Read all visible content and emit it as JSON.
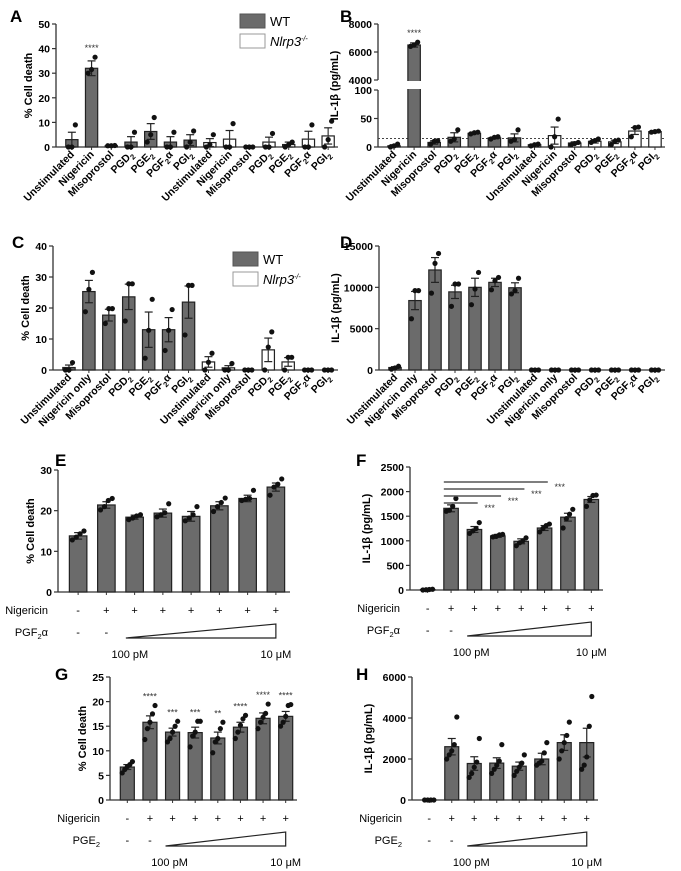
{
  "colors": {
    "wt": "#6b6b6b",
    "ko": "#ffffff",
    "axis": "#333333",
    "dot": "#111111",
    "line": "#555555"
  },
  "legend": {
    "wt": "WT",
    "ko": "Nlrp3",
    "ko_sup": "-/-"
  },
  "chart_data": [
    {
      "panel": "A",
      "type": "bar",
      "ylabel": "% Cell death",
      "ylim": [
        0,
        50
      ],
      "yticks": [
        0,
        10,
        20,
        30,
        40,
        50
      ],
      "categories": [
        "Unstimulated",
        "Nigericin",
        "Misoprostol",
        "PGD2",
        "PGE2",
        "PGF2α",
        "PGI2",
        "Unstimulated",
        "Nigericin",
        "Misoprostol",
        "PGD2",
        "PGE2",
        "PGF2α",
        "PGI2"
      ],
      "groups": [
        "WT",
        "WT",
        "WT",
        "WT",
        "WT",
        "WT",
        "WT",
        "Nlrp3-/-",
        "Nlrp3-/-",
        "Nlrp3-/-",
        "Nlrp3-/-",
        "Nlrp3-/-",
        "Nlrp3-/-",
        "Nlrp3-/-"
      ],
      "values": [
        3,
        32,
        0.5,
        2,
        6.3,
        2,
        2.8,
        1.8,
        3.2,
        0,
        2,
        1,
        3.2,
        4.5
      ],
      "errors": [
        3,
        3,
        0.2,
        2.2,
        3.2,
        2.2,
        2.2,
        1.6,
        3.5,
        0,
        2,
        1,
        3.2,
        3.3
      ],
      "points": [
        [
          0,
          0,
          9
        ],
        [
          30,
          31.5,
          36.5
        ],
        [
          0.5,
          0.5,
          0.6
        ],
        [
          0,
          0,
          6
        ],
        [
          2,
          5,
          12
        ],
        [
          0,
          0,
          6
        ],
        [
          0,
          2,
          6.5
        ],
        [
          0,
          1,
          5
        ],
        [
          0,
          0,
          9.5
        ],
        [
          0,
          0,
          0
        ],
        [
          0,
          0,
          5.5
        ],
        [
          0,
          1,
          2
        ],
        [
          0,
          0,
          9
        ],
        [
          0,
          3,
          10.5
        ]
      ],
      "annotations": [
        {
          "index": 1,
          "text": "****"
        }
      ],
      "legend": true
    },
    {
      "panel": "B",
      "type": "bar",
      "ylabel": "IL-1β (pg/mL)",
      "ylim_lower": [
        0,
        100
      ],
      "ylim_upper": [
        4000,
        8000
      ],
      "yticks_lower": [
        0,
        50,
        100
      ],
      "yticks_upper": [
        4000,
        6000,
        8000
      ],
      "reference_line": 15,
      "categories": [
        "Unstimulated",
        "Nigericin",
        "Misoprostol",
        "PGD2",
        "PGE2",
        "PGF2α",
        "PGI2",
        "Unstimulated",
        "Nigericin",
        "Misoprostol",
        "PGD2",
        "PGE2",
        "PGF2α",
        "PGI2"
      ],
      "groups": [
        "WT",
        "WT",
        "WT",
        "WT",
        "WT",
        "WT",
        "WT",
        "Nlrp3-/-",
        "Nlrp3-/-",
        "Nlrp3-/-",
        "Nlrp3-/-",
        "Nlrp3-/-",
        "Nlrp3-/-",
        "Nlrp3-/-"
      ],
      "values": [
        2,
        6500,
        8,
        17,
        24,
        16,
        16,
        4,
        20,
        7,
        10,
        9,
        28,
        27
      ],
      "errors": [
        2,
        150,
        3,
        8,
        1,
        1.5,
        7,
        1,
        15,
        2,
        3,
        3,
        6,
        1
      ],
      "points": [
        [
          0,
          2,
          5
        ],
        [
          6400,
          6500,
          6700
        ],
        [
          5,
          10,
          11
        ],
        [
          10,
          14,
          30
        ],
        [
          23,
          25,
          26
        ],
        [
          14,
          17,
          18
        ],
        [
          10,
          13,
          30
        ],
        [
          2,
          4,
          5
        ],
        [
          0,
          18,
          49
        ],
        [
          4,
          6,
          8
        ],
        [
          8,
          11,
          14
        ],
        [
          4,
          10,
          12
        ],
        [
          18,
          34,
          35
        ],
        [
          26,
          27,
          28
        ]
      ],
      "annotations": [
        {
          "index": 1,
          "text": "****"
        }
      ]
    },
    {
      "panel": "C",
      "type": "bar",
      "ylabel": "% Cell death",
      "ylim": [
        0,
        40
      ],
      "yticks": [
        0,
        10,
        20,
        30,
        40
      ],
      "categories": [
        "Unstimulated",
        "Nigericin only",
        "Misoprostol",
        "PGD2",
        "PGE2",
        "PGF2α",
        "PGI2",
        "Unstimulated",
        "Nigericin only",
        "Misoprostol",
        "PGD2",
        "PGE2",
        "PGF2α",
        "PGI2"
      ],
      "groups": [
        "WT",
        "WT",
        "WT",
        "WT",
        "WT",
        "WT",
        "WT",
        "Nlrp3-/-",
        "Nlrp3-/-",
        "Nlrp3-/-",
        "Nlrp3-/-",
        "Nlrp3-/-",
        "Nlrp3-/-",
        "Nlrp3-/-"
      ],
      "values": [
        0.8,
        25.3,
        17.7,
        23.6,
        13,
        13,
        21.9,
        2.6,
        0.7,
        0,
        6.5,
        2.6,
        0,
        0
      ],
      "errors": [
        0.8,
        3.6,
        1.9,
        4.1,
        5.7,
        3.9,
        5.2,
        1.7,
        0.7,
        0,
        3.8,
        1.4,
        0,
        0
      ],
      "points": [
        [
          0,
          0,
          2.4
        ],
        [
          18.8,
          26,
          31.5
        ],
        [
          15,
          19.8,
          19.8
        ],
        [
          15.8,
          27.8,
          27.8
        ],
        [
          3.8,
          12.8,
          22.8
        ],
        [
          6.3,
          12.8,
          19.5
        ],
        [
          11.3,
          27.3,
          27.3
        ],
        [
          0,
          2.5,
          5.4
        ],
        [
          0,
          0,
          2.1
        ],
        [
          0,
          0,
          0
        ],
        [
          0,
          7.4,
          12.3
        ],
        [
          0,
          4.1,
          4.1
        ],
        [
          0,
          0,
          0
        ],
        [
          0,
          0,
          0
        ]
      ],
      "legend": true
    },
    {
      "panel": "D",
      "type": "bar",
      "ylabel": "IL-1β (pg/mL)",
      "ylim": [
        0,
        15000
      ],
      "yticks": [
        0,
        5000,
        10000,
        15000
      ],
      "categories": [
        "Unstimulated",
        "Nigericin only",
        "Misoprostol",
        "PGD2",
        "PGE2",
        "PGF2α",
        "PGI2",
        "Unstimulated",
        "Nigericin only",
        "Misoprostol",
        "PGD2",
        "PGE2",
        "PGF2α",
        "PGI2"
      ],
      "groups": [
        "WT",
        "WT",
        "WT",
        "WT",
        "WT",
        "WT",
        "WT",
        "Nlrp3-/-",
        "Nlrp3-/-",
        "Nlrp3-/-",
        "Nlrp3-/-",
        "Nlrp3-/-",
        "Nlrp3-/-",
        "Nlrp3-/-"
      ],
      "values": [
        300,
        8400,
        12100,
        9450,
        10000,
        10600,
        9950,
        0,
        0,
        0,
        0,
        0,
        0,
        0
      ],
      "errors": [
        100,
        1100,
        1500,
        800,
        1100,
        500,
        600,
        0,
        0,
        0,
        0,
        0,
        0,
        0
      ],
      "points": [
        [
          100,
          250,
          450
        ],
        [
          6200,
          9600,
          9600
        ],
        [
          9300,
          12900,
          14100
        ],
        [
          7700,
          10400,
          10400
        ],
        [
          7900,
          9800,
          11800
        ],
        [
          9700,
          10800,
          11200
        ],
        [
          9200,
          9600,
          11100
        ],
        [
          0,
          0,
          0
        ],
        [
          0,
          0,
          0
        ],
        [
          0,
          0,
          0
        ],
        [
          0,
          0,
          0
        ],
        [
          0,
          0,
          0
        ],
        [
          0,
          0,
          0
        ],
        [
          0,
          0,
          0
        ]
      ]
    },
    {
      "panel": "E",
      "type": "bar",
      "ylabel": "% Cell death",
      "ylim": [
        0,
        30
      ],
      "yticks": [
        0,
        10,
        20,
        30
      ],
      "rows": [
        {
          "label": "Nigericin",
          "marks": [
            "-",
            "+",
            "+",
            "+",
            "+",
            "+",
            "+",
            "+"
          ]
        },
        {
          "label": "PGF2α",
          "marks": [
            "-",
            "-"
          ],
          "gradient": {
            "from": "100 pM",
            "to": "10 μM"
          }
        }
      ],
      "values": [
        13.8,
        21.4,
        18.4,
        19.4,
        18.6,
        21.2,
        23,
        25.8
      ],
      "errors": [
        0.8,
        0.8,
        0.5,
        1,
        1.2,
        1,
        0.8,
        1
      ],
      "points": [
        [
          12.8,
          13.5,
          14.3,
          15
        ],
        [
          20.2,
          21,
          22.5,
          23
        ],
        [
          17.8,
          18.2,
          18.7,
          19
        ],
        [
          18.5,
          19,
          19.5,
          21.7
        ],
        [
          17.5,
          18.2,
          19,
          21
        ],
        [
          19.8,
          21,
          22,
          23.1
        ],
        [
          22.5,
          22.8,
          23,
          25
        ],
        [
          23.8,
          25.8,
          26.5,
          27.8
        ]
      ]
    },
    {
      "panel": "F",
      "type": "bar",
      "ylabel": "IL-1β (pg/mL)",
      "ylim": [
        0,
        2500
      ],
      "yticks": [
        0,
        500,
        1000,
        1500,
        2000,
        2500
      ],
      "rows": [
        {
          "label": "Nigericin",
          "marks": [
            "-",
            "+",
            "+",
            "+",
            "+",
            "+",
            "+",
            "+"
          ]
        },
        {
          "label": "PGF2α",
          "marks": [
            "-",
            "-"
          ],
          "gradient": {
            "from": "100 pM",
            "to": "10 μM"
          }
        }
      ],
      "values": [
        10,
        1660,
        1230,
        1100,
        990,
        1260,
        1480,
        1840
      ],
      "errors": [
        5,
        70,
        60,
        30,
        50,
        50,
        80,
        60
      ],
      "points": [
        [
          0,
          5,
          10,
          15
        ],
        [
          1600,
          1620,
          1700,
          1860
        ],
        [
          1150,
          1200,
          1250,
          1370
        ],
        [
          1080,
          1090,
          1120,
          1130
        ],
        [
          900,
          960,
          1000,
          1060
        ],
        [
          1180,
          1250,
          1310,
          1340
        ],
        [
          1260,
          1450,
          1540,
          1640
        ],
        [
          1700,
          1830,
          1920,
          1930
        ]
      ],
      "significance": [
        {
          "from": 1,
          "to": 2,
          "text": "***"
        },
        {
          "from": 1,
          "to": 3,
          "text": "***"
        },
        {
          "from": 1,
          "to": 4,
          "text": "***"
        },
        {
          "from": 1,
          "to": 5,
          "text": "***"
        }
      ]
    },
    {
      "panel": "G",
      "type": "bar",
      "ylabel": "% Cell death",
      "ylim": [
        0,
        25
      ],
      "yticks": [
        0,
        5,
        10,
        15,
        20,
        25
      ],
      "rows": [
        {
          "label": "Nigericin",
          "marks": [
            "-",
            "+",
            "+",
            "+",
            "+",
            "+",
            "+",
            "+"
          ]
        },
        {
          "label": "PGE2",
          "marks": [
            "-",
            "-"
          ],
          "gradient": {
            "from": "100 pM",
            "to": "10 μM"
          }
        }
      ],
      "values": [
        6.7,
        15.8,
        13.8,
        13.7,
        12.6,
        14.8,
        16.6,
        17
      ],
      "errors": [
        0.5,
        1.3,
        0.8,
        1.1,
        1.2,
        1,
        1.1,
        1
      ],
      "points": [
        [
          5.5,
          6.2,
          6.8,
          7.2,
          7.8
        ],
        [
          12.3,
          14.5,
          15.8,
          17.5,
          19.2
        ],
        [
          11.8,
          12.5,
          13.8,
          15,
          16
        ],
        [
          10.8,
          13,
          13.8,
          16,
          16
        ],
        [
          9.6,
          11.8,
          12.5,
          14.5,
          15.8
        ],
        [
          12.5,
          13.8,
          15.2,
          16.5,
          17.2
        ],
        [
          14.5,
          15.8,
          16.8,
          17.6,
          19.5
        ],
        [
          15,
          15.8,
          17,
          19.2,
          19.4
        ]
      ],
      "annotations": [
        {
          "index": 1,
          "text": "****"
        },
        {
          "index": 2,
          "text": "***"
        },
        {
          "index": 3,
          "text": "***"
        },
        {
          "index": 4,
          "text": "**"
        },
        {
          "index": 5,
          "text": "****"
        },
        {
          "index": 6,
          "text": "****"
        },
        {
          "index": 7,
          "text": "****"
        }
      ]
    },
    {
      "panel": "H",
      "type": "bar",
      "ylabel": "IL-1β (pg/mL)",
      "ylim": [
        0,
        6000
      ],
      "yticks": [
        0,
        2000,
        4000,
        6000
      ],
      "rows": [
        {
          "label": "Nigericin",
          "marks": [
            "-",
            "+",
            "+",
            "+",
            "+",
            "+",
            "+",
            "+"
          ]
        },
        {
          "label": "PGE2",
          "marks": [
            "-",
            "-"
          ],
          "gradient": {
            "from": "100 pM",
            "to": "10 μM"
          }
        }
      ],
      "values": [
        0,
        2600,
        1780,
        1800,
        1650,
        2000,
        2800,
        2800
      ],
      "errors": [
        0,
        400,
        330,
        260,
        200,
        280,
        380,
        700
      ],
      "points": [
        [
          0,
          0,
          0,
          0
        ],
        [
          2000,
          2200,
          2400,
          2700,
          4050
        ],
        [
          1100,
          1300,
          1600,
          1850,
          3000
        ],
        [
          1300,
          1500,
          1700,
          1900,
          2700
        ],
        [
          1200,
          1400,
          1600,
          1800,
          2200
        ],
        [
          1700,
          1800,
          1900,
          2300,
          2800
        ],
        [
          2000,
          2400,
          2800,
          3150,
          3800
        ],
        [
          1500,
          1700,
          2100,
          3600,
          5050
        ]
      ]
    }
  ]
}
